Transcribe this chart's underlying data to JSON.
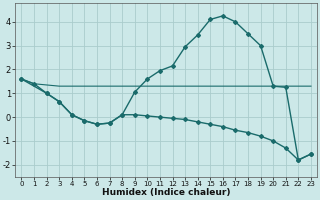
{
  "xlabel": "Humidex (Indice chaleur)",
  "ylabel": "",
  "xlim": [
    -0.5,
    23.5
  ],
  "ylim": [
    -2.5,
    4.8
  ],
  "xticks": [
    0,
    1,
    2,
    3,
    4,
    5,
    6,
    7,
    8,
    9,
    10,
    11,
    12,
    13,
    14,
    15,
    16,
    17,
    18,
    19,
    20,
    21,
    22,
    23
  ],
  "yticks": [
    -2,
    -1,
    0,
    1,
    2,
    3,
    4
  ],
  "bg_color": "#cce8e8",
  "grid_color": "#aacccc",
  "line_color": "#1a6b6b",
  "lines": [
    {
      "x": [
        0,
        1,
        2,
        3,
        4,
        5,
        6,
        7,
        8,
        9,
        10,
        11,
        12,
        13,
        14,
        15,
        16,
        17,
        18,
        19,
        20,
        21,
        22,
        23
      ],
      "y": [
        1.6,
        1.4,
        1.0,
        0.65,
        0.1,
        -0.15,
        -0.3,
        -0.25,
        0.1,
        1.05,
        1.6,
        1.95,
        2.15,
        2.95,
        3.45,
        4.1,
        4.25,
        4.0,
        3.5,
        3.0,
        1.3,
        1.25,
        -1.8,
        -1.55
      ],
      "marker": "D",
      "ms": 2.0,
      "lw": 1.0
    },
    {
      "x": [
        0,
        1,
        2,
        3,
        4,
        5,
        6,
        7,
        8,
        9,
        10,
        11,
        12,
        13,
        14,
        15,
        16,
        17,
        18,
        19,
        20,
        21,
        22,
        23
      ],
      "y": [
        1.6,
        1.4,
        1.35,
        1.3,
        1.3,
        1.3,
        1.3,
        1.3,
        1.3,
        1.3,
        1.3,
        1.3,
        1.3,
        1.3,
        1.3,
        1.3,
        1.3,
        1.3,
        1.3,
        1.3,
        1.3,
        1.3,
        1.3,
        1.3
      ],
      "marker": null,
      "ms": 0,
      "lw": 0.8
    },
    {
      "x": [
        0,
        2,
        3,
        4,
        5,
        6,
        7,
        8,
        9,
        10,
        11,
        12,
        13,
        14,
        15,
        16,
        17,
        18,
        19,
        20,
        21,
        22,
        23
      ],
      "y": [
        1.6,
        1.0,
        0.65,
        0.1,
        -0.15,
        -0.3,
        -0.25,
        0.1,
        0.1,
        0.05,
        0.0,
        -0.05,
        -0.1,
        -0.2,
        -0.3,
        -0.4,
        -0.55,
        -0.65,
        -0.8,
        -1.0,
        -1.3,
        -1.8,
        -1.55
      ],
      "marker": "D",
      "ms": 2.0,
      "lw": 1.0
    }
  ]
}
